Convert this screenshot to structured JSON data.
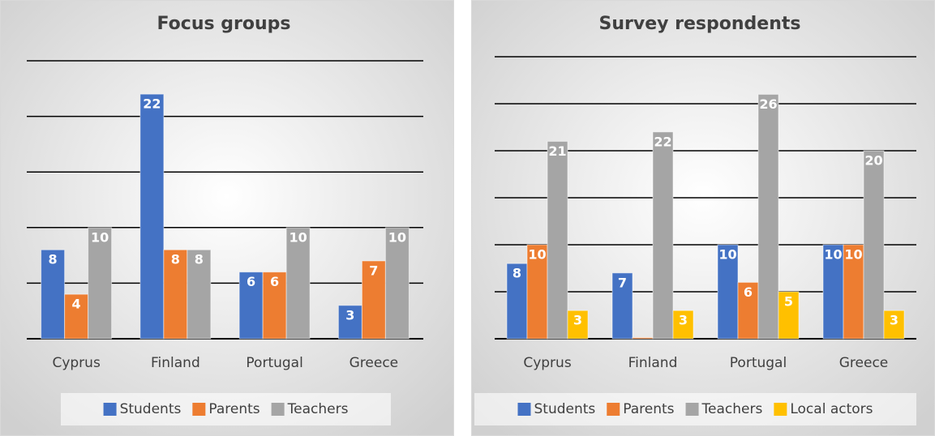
{
  "chart_data": [
    {
      "type": "bar",
      "title": "Focus groups",
      "categories": [
        "Cyprus",
        "Finland",
        "Portugal",
        "Greece"
      ],
      "series": [
        {
          "name": "Students",
          "color": "#4472c4",
          "values": [
            8,
            22,
            6,
            3
          ]
        },
        {
          "name": "Parents",
          "color": "#ed7d31",
          "values": [
            4,
            8,
            6,
            7
          ]
        },
        {
          "name": "Teachers",
          "color": "#a5a5a5",
          "values": [
            10,
            8,
            10,
            10
          ]
        }
      ],
      "ylim": [
        0,
        25
      ],
      "yticks": [
        0,
        5,
        10,
        15,
        20,
        25
      ],
      "grid": true,
      "legend": "bottom"
    },
    {
      "type": "bar",
      "title": "Survey respondents",
      "categories": [
        "Cyprus",
        "Finland",
        "Portugal",
        "Greece"
      ],
      "series": [
        {
          "name": "Students",
          "color": "#4472c4",
          "values": [
            8,
            7,
            10,
            10
          ]
        },
        {
          "name": "Parents",
          "color": "#ed7d31",
          "values": [
            10,
            0,
            6,
            10
          ]
        },
        {
          "name": "Teachers",
          "color": "#a5a5a5",
          "values": [
            21,
            22,
            26,
            20
          ]
        },
        {
          "name": "Local actors",
          "color": "#ffc000",
          "values": [
            3,
            3,
            5,
            3
          ]
        }
      ],
      "ylim": [
        0,
        30
      ],
      "yticks": [
        0,
        5,
        10,
        15,
        20,
        25,
        30
      ],
      "grid": true,
      "legend": "bottom"
    }
  ]
}
